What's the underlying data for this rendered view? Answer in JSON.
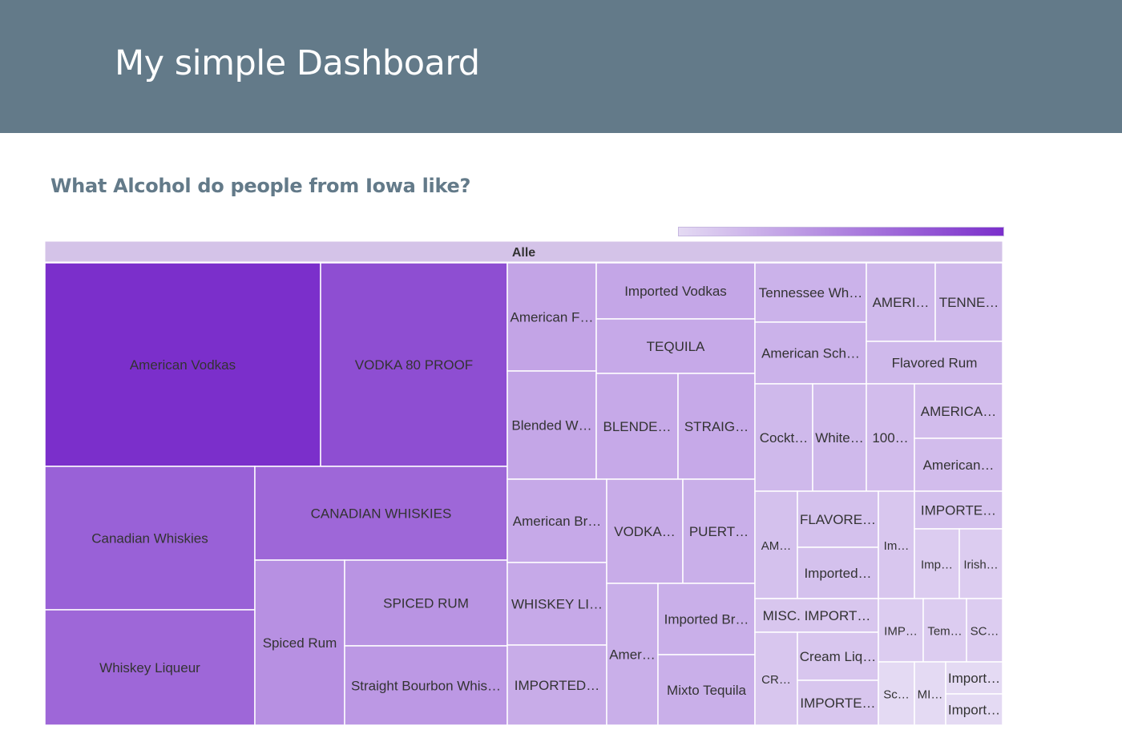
{
  "header": {
    "title": "My simple Dashboard"
  },
  "chart_title": "What Alcohol do people from Iowa like?",
  "colors": {
    "header_bg": "#637a89",
    "title_text": "#637a89",
    "scale_low": "#e4daf3",
    "scale_high": "#7b2fcb"
  },
  "chart_data": {
    "type": "treemap",
    "root_label": "Alle",
    "legend": "colorbar top-right",
    "items": [
      {
        "label": "American Vodkas",
        "value": 100
      },
      {
        "label": "VODKA 80 PROOF",
        "value": 70
      },
      {
        "label": "Canadian Whiskies",
        "value": 55
      },
      {
        "label": "CANADIAN WHISKIES",
        "value": 50
      },
      {
        "label": "Whiskey Liqueur",
        "value": 50
      },
      {
        "label": "Spiced Rum",
        "value": 24
      },
      {
        "label": "SPICED RUM",
        "value": 22
      },
      {
        "label": "Straight Bourbon Whis…",
        "value": 20
      },
      {
        "label": "American F…",
        "value": 15
      },
      {
        "label": "Imported Vodkas",
        "value": 14
      },
      {
        "label": "TEQUILA",
        "value": 13
      },
      {
        "label": "Blended W…",
        "value": 14
      },
      {
        "label": "BLENDE…",
        "value": 13
      },
      {
        "label": "STRAIG…",
        "value": 13
      },
      {
        "label": "American Br…",
        "value": 13
      },
      {
        "label": "WHISKEY LI…",
        "value": 13
      },
      {
        "label": "IMPORTED…",
        "value": 12
      },
      {
        "label": "VODKA…",
        "value": 12
      },
      {
        "label": "PUERT…",
        "value": 11
      },
      {
        "label": "Amer…",
        "value": 11
      },
      {
        "label": "Imported Br…",
        "value": 11
      },
      {
        "label": "Mixto Tequila",
        "value": 11
      },
      {
        "label": "Tennessee Wh…",
        "value": 10
      },
      {
        "label": "American Sch…",
        "value": 10
      },
      {
        "label": "AMERI…",
        "value": 8
      },
      {
        "label": "TENNE…",
        "value": 8
      },
      {
        "label": "Flavored Rum",
        "value": 8
      },
      {
        "label": "Cockt…",
        "value": 8
      },
      {
        "label": "White…",
        "value": 8
      },
      {
        "label": "100…",
        "value": 7
      },
      {
        "label": "AMERICA…",
        "value": 7
      },
      {
        "label": "American…",
        "value": 7
      },
      {
        "label": "AM…",
        "value": 6
      },
      {
        "label": "FLAVORE…",
        "value": 6
      },
      {
        "label": "Imported…",
        "value": 6
      },
      {
        "label": "Im…",
        "value": 5
      },
      {
        "label": "IMPORTE…",
        "value": 6
      },
      {
        "label": "Imp…",
        "value": 4
      },
      {
        "label": "Irish…",
        "value": 4
      },
      {
        "label": "MISC. IMPORT…",
        "value": 5
      },
      {
        "label": "CR…",
        "value": 5
      },
      {
        "label": "Cream Liq…",
        "value": 5
      },
      {
        "label": "IMPORTE…",
        "value": 5
      },
      {
        "label": "IMP…",
        "value": 4
      },
      {
        "label": "Tem…",
        "value": 4
      },
      {
        "label": "SC…",
        "value": 4
      },
      {
        "label": "Sc…",
        "value": 3
      },
      {
        "label": "MI…",
        "value": 3
      },
      {
        "label": "Import…",
        "value": 3
      },
      {
        "label": "Import…",
        "value": 3
      }
    ]
  }
}
